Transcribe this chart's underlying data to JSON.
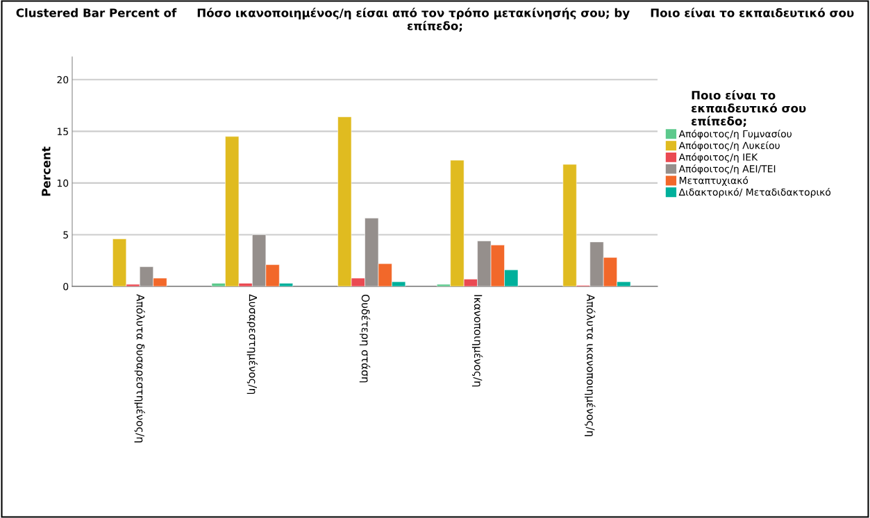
{
  "chart_data": {
    "type": "bar",
    "title": "Clustered Bar Percent of     Πόσο ικανοποιημένος/η είσαι από τον τρόπο μετακίνησής σου; by     Ποιο είναι το εκπαιδευτικό σου επίπεδο;",
    "ylabel": "Percent",
    "legend_title": "Ποιο είναι το εκπαιδευτικό σου επίπεδο;",
    "categories": [
      "Απόλυτα δυσαρεστημένος/η",
      "Δυσαρεστημένος/η",
      "Ουδέτερη στάση",
      "Ικανοποιημένος/η",
      "Απόλυτα ικανοποιημένος/η"
    ],
    "series": [
      {
        "name": "Απόφοιτος/η Γυμνασίου",
        "color": "#5cc98c",
        "values": [
          null,
          0.3,
          null,
          0.2,
          null
        ]
      },
      {
        "name": "Απόφοιτος/η Λυκείου",
        "color": "#e0bb20",
        "values": [
          4.6,
          14.5,
          16.4,
          12.2,
          11.8
        ]
      },
      {
        "name": "Απόφοιτος/η ΙΕΚ",
        "color": "#ea4a52",
        "values": [
          0.2,
          0.3,
          0.8,
          0.7,
          0.1
        ]
      },
      {
        "name": "Απόφοιτος/η ΑΕΙ/ΤΕΙ",
        "color": "#958f8c",
        "values": [
          1.9,
          5.0,
          6.6,
          4.4,
          4.3
        ]
      },
      {
        "name": "Μεταπτυχιακό",
        "color": "#f2682a",
        "values": [
          0.8,
          2.1,
          2.2,
          4.0,
          2.8
        ]
      },
      {
        "name": "Διδακτορικό/ Μεταδιδακτορικό",
        "color": "#00b09b",
        "values": [
          null,
          0.3,
          0.45,
          1.6,
          0.45
        ]
      }
    ],
    "ylim": [
      0,
      22.2
    ],
    "yticks": [
      0,
      5,
      10,
      15,
      20
    ],
    "grid": "y",
    "legend": "right"
  }
}
